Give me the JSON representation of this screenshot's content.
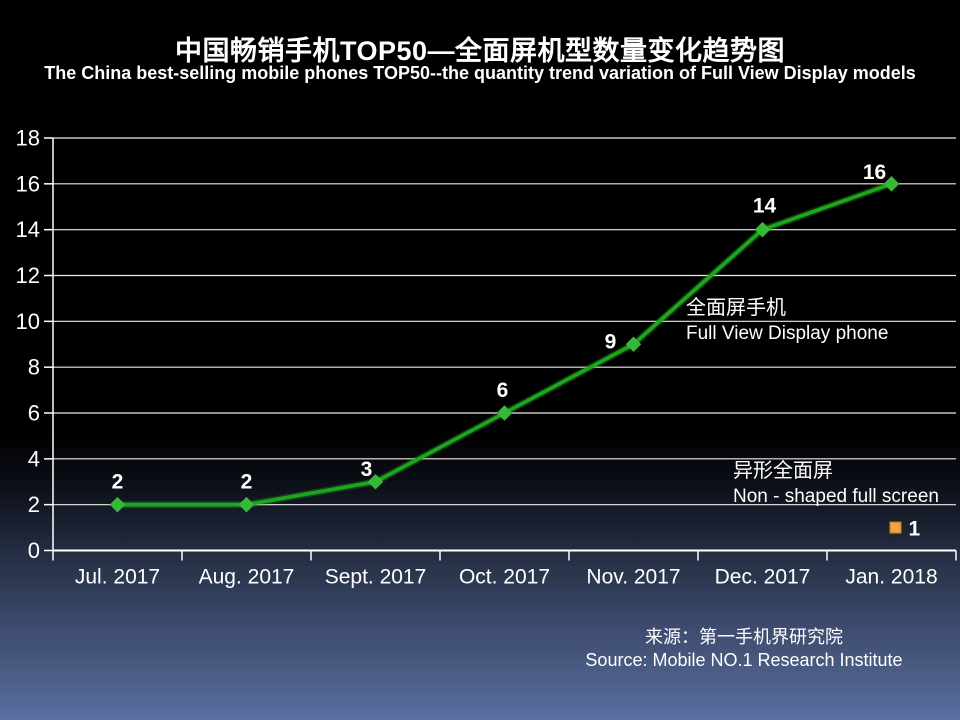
{
  "slide": {
    "source_cn": "来源：第一手机界研究院",
    "source_en": "Source: Mobile NO.1 Research Institute"
  },
  "chart_data": {
    "type": "line",
    "title": "中国畅销手机TOP50—全面屏机型数量变化趋势图",
    "subtitle": "The China best-selling mobile phones TOP50--the quantity trend variation of Full View Display models",
    "categories": [
      "Jul. 2017",
      "Aug. 2017",
      "Sept. 2017",
      "Oct. 2017",
      "Nov. 2017",
      "Dec. 2017",
      "Jan. 2018"
    ],
    "series": [
      {
        "name_cn": "全面屏手机",
        "name_en": "Full View Display phone",
        "values": [
          2,
          2,
          3,
          6,
          9,
          14,
          16
        ],
        "color": "#1ea51e",
        "marker_color": "#38b838",
        "marker": "diamond"
      },
      {
        "name_cn": "异形全面屏",
        "name_en": "Non - shaped full screen",
        "values": [
          null,
          null,
          null,
          null,
          null,
          null,
          1
        ],
        "color": "#eaa93f",
        "marker_color": "#eaa93f",
        "marker": "square"
      }
    ],
    "ylim": [
      0,
      18
    ],
    "ytick_step": 2,
    "yticks": [
      0,
      2,
      4,
      6,
      8,
      10,
      12,
      14,
      16,
      18
    ],
    "xlabel": "",
    "ylabel": "",
    "grid": "horizontal",
    "legend": "inline-annotations",
    "axis_color": "#ffffff",
    "text_color": "#ffffff"
  }
}
